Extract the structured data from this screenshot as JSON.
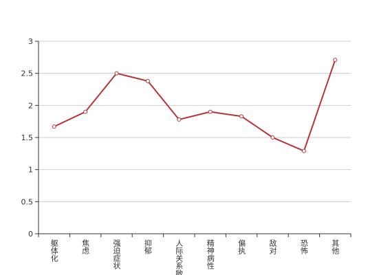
{
  "chart_data": {
    "type": "line",
    "categories": [
      "躯体化",
      "焦虑",
      "强迫症状",
      "抑郁",
      "人际关系敏感",
      "精神病性",
      "偏执",
      "敌对",
      "恐怖",
      "其他"
    ],
    "series": [
      {
        "color": "#b83236",
        "values": [
          1.67,
          1.9,
          2.5,
          2.38,
          1.78,
          1.9,
          1.83,
          1.5,
          1.29,
          2.71
        ]
      }
    ],
    "ylim": [
      0,
      3
    ],
    "yticks": [
      0,
      0.5,
      1,
      1.5,
      2,
      2.5,
      3
    ],
    "grid": true
  }
}
